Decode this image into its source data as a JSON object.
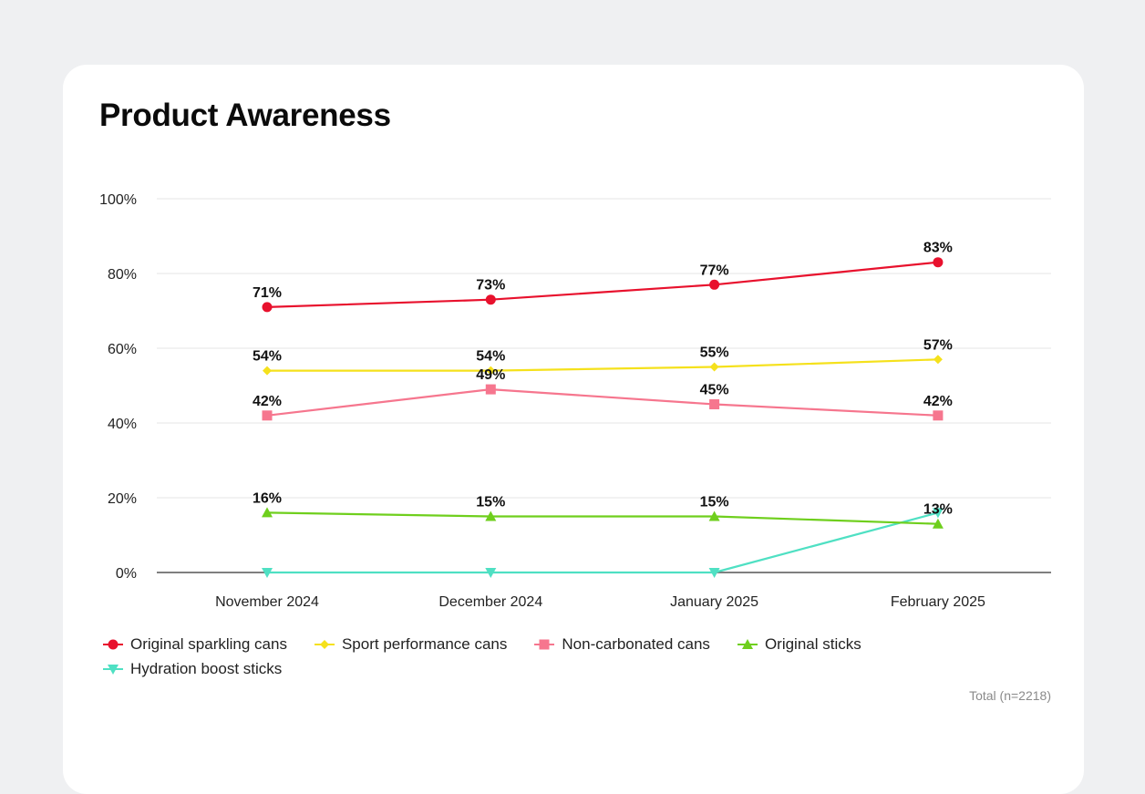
{
  "title": "Product Awareness",
  "footnote": "Total (n=2218)",
  "chart_data": {
    "type": "line",
    "title": "Product Awareness",
    "xlabel": "",
    "ylabel": "",
    "ylim": [
      0,
      100
    ],
    "yticks": [
      0,
      20,
      40,
      60,
      80,
      100
    ],
    "ytick_labels": [
      "0%",
      "20%",
      "40%",
      "60%",
      "80%",
      "100%"
    ],
    "categories": [
      "November 2024",
      "December 2024",
      "January 2025",
      "February 2025"
    ],
    "legend_position": "bottom-left",
    "grid": true,
    "series": [
      {
        "name": "Original sparkling cans",
        "values": [
          71,
          73,
          77,
          83
        ],
        "labels": [
          "71%",
          "73%",
          "77%",
          "83%"
        ],
        "color": "#e8112d",
        "marker": "circle"
      },
      {
        "name": "Sport performance cans",
        "values": [
          54,
          54,
          55,
          57
        ],
        "labels": [
          "54%",
          "54%",
          "55%",
          "57%"
        ],
        "color": "#f5e11c",
        "marker": "diamond"
      },
      {
        "name": "Non-carbonated cans",
        "values": [
          42,
          49,
          45,
          42
        ],
        "labels": [
          "42%",
          "49%",
          "45%",
          "42%"
        ],
        "color": "#f6768e",
        "marker": "square"
      },
      {
        "name": "Original sticks",
        "values": [
          16,
          15,
          15,
          13
        ],
        "labels": [
          "16%",
          "15%",
          "15%",
          "13%"
        ],
        "color": "#6fcf1d",
        "marker": "triangle-up"
      },
      {
        "name": "Hydration boost sticks",
        "values": [
          0,
          0,
          0,
          16
        ],
        "labels": [
          "",
          "",
          "",
          ""
        ],
        "color": "#4fe0c3",
        "marker": "triangle-down"
      }
    ]
  }
}
